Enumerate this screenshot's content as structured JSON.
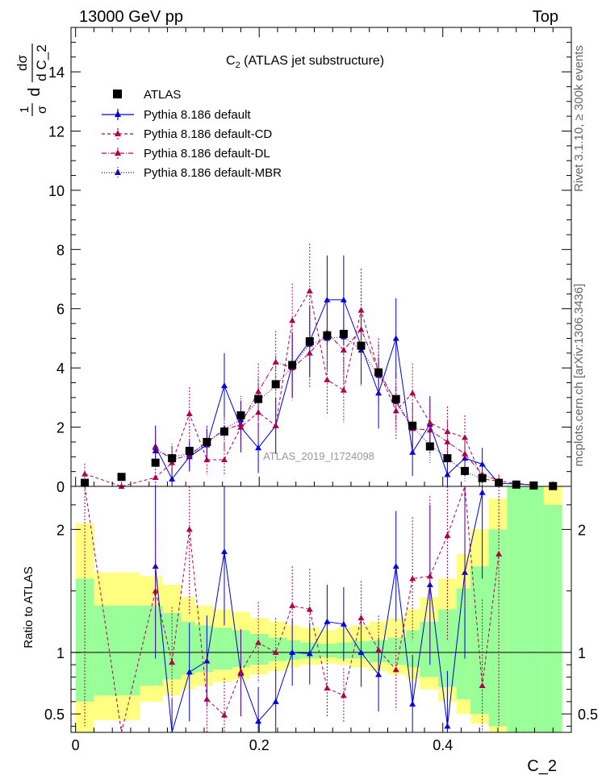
{
  "header": {
    "left": "13000 GeV pp",
    "right": "Top"
  },
  "side_labels": {
    "rivet": "Rivet 3.1.10, ≥ 300k events",
    "mcplots": "mcplots.cern.ch [arXiv:1306.3436]"
  },
  "watermark": "ATLAS_2019_I1724098",
  "colors": {
    "atlas": "#000000",
    "default": "#0000dd",
    "cd": "#b0004a",
    "dl": "#b0004a",
    "mbr": "#2000b0",
    "band_inner": "#99ff99",
    "band_outer": "#ffff80"
  },
  "chart_data": {
    "type": "scatter",
    "title_main": "C",
    "title_sub": "2",
    "title_rest": " (ATLAS jet substructure)",
    "ylabel_top": "1/σ dσ/dC_2",
    "ylabel_parts": {
      "frac1_num": "1",
      "frac1_den": "σ",
      "d": "d",
      "frac2_num": "dσ",
      "frac2_den": "d C_2"
    },
    "ylabel_ratio": "Ratio to ATLAS",
    "xlabel": "C_2",
    "xlim": [
      -0.005,
      0.54
    ],
    "ylim_top": [
      0,
      15.5
    ],
    "ylim_ratio": [
      0.35,
      2.35
    ],
    "x_ticks": [
      "0",
      "0.2",
      "0.4"
    ],
    "y_ticks_top": [
      "0",
      "2",
      "4",
      "6",
      "8",
      "10",
      "12",
      "14"
    ],
    "y_ticks_ratio": [
      "0.5",
      "1",
      "2"
    ],
    "legend": [
      {
        "label": "ATLAS"
      },
      {
        "label": "Pythia 8.186 default"
      },
      {
        "label": "Pythia 8.186 default-CD"
      },
      {
        "label": "Pythia 8.186 default-DL"
      },
      {
        "label": "Pythia 8.186 default-MBR"
      }
    ],
    "series": [
      {
        "name": "ATLAS",
        "x": [
          0.01,
          0.05,
          0.087,
          0.105,
          0.124,
          0.143,
          0.162,
          0.18,
          0.199,
          0.218,
          0.236,
          0.255,
          0.274,
          0.292,
          0.311,
          0.33,
          0.349,
          0.367,
          0.386,
          0.405,
          0.424,
          0.443,
          0.461,
          0.48,
          0.499,
          0.52
        ],
        "y": [
          0.12,
          0.32,
          0.8,
          0.95,
          1.2,
          1.5,
          1.85,
          2.4,
          2.95,
          3.45,
          4.1,
          4.9,
          5.1,
          5.15,
          4.75,
          3.85,
          2.95,
          2.05,
          1.35,
          0.95,
          0.52,
          0.28,
          0.12,
          0.06,
          0.03,
          0.01
        ]
      },
      {
        "name": "Pythia 8.186 default",
        "x": [
          0.087,
          0.105,
          0.124,
          0.143,
          0.162,
          0.18,
          0.199,
          0.218,
          0.236,
          0.255,
          0.274,
          0.292,
          0.311,
          0.33,
          0.349,
          0.367,
          0.386,
          0.405,
          0.424,
          0.443,
          0.461,
          0.48,
          0.499
        ],
        "y": [
          1.35,
          0.25,
          1.0,
          1.4,
          3.4,
          2.0,
          1.3,
          2.05,
          4.1,
          4.9,
          6.3,
          6.3,
          4.75,
          3.15,
          5.0,
          1.15,
          2.1,
          0.4,
          0.95,
          0.75,
          0.1,
          0.08,
          0.05
        ],
        "err": [
          0.7,
          0.35,
          0.5,
          0.55,
          1.1,
          0.85,
          0.85,
          0.95,
          1.1,
          1.2,
          1.5,
          1.5,
          1.3,
          1.2,
          1.35,
          0.8,
          0.9,
          0.45,
          0.6,
          0.55,
          0.1,
          0.08,
          0.05
        ]
      },
      {
        "name": "Pythia 8.186 default-CD",
        "x": [
          0.01,
          0.05,
          0.087,
          0.105,
          0.124,
          0.143,
          0.162,
          0.18,
          0.199,
          0.218,
          0.236,
          0.255,
          0.274,
          0.292,
          0.311,
          0.33,
          0.349,
          0.367,
          0.386,
          0.405,
          0.424,
          0.443,
          0.461,
          0.48,
          0.499
        ],
        "y": [
          0.42,
          0.0,
          0.3,
          0.8,
          2.45,
          0.9,
          0.9,
          2.0,
          2.5,
          2.05,
          5.6,
          6.6,
          3.6,
          3.25,
          5.95,
          3.9,
          2.55,
          3.15,
          2.15,
          1.85,
          1.65,
          0.25,
          0.18,
          0.1,
          0.05
        ],
        "err": [
          0.35,
          0.15,
          0.3,
          0.5,
          0.9,
          0.5,
          0.55,
          0.8,
          0.95,
          0.95,
          1.25,
          1.6,
          1.2,
          1.1,
          1.4,
          1.1,
          0.95,
          1.0,
          0.9,
          0.85,
          0.75,
          0.25,
          0.18,
          0.1,
          0.05
        ]
      },
      {
        "name": "Pythia 8.186 default-DL",
        "x": [
          0.087,
          0.105,
          0.124,
          0.143,
          0.162,
          0.18,
          0.199,
          0.218,
          0.236,
          0.255,
          0.274,
          0.292,
          0.311,
          0.33,
          0.349,
          0.367,
          0.386,
          0.405,
          0.424,
          0.443,
          0.461
        ],
        "y": [
          1.3,
          0.9,
          1.05,
          1.5,
          1.9,
          2.1,
          3.2,
          4.2,
          4.0,
          4.5,
          5.2,
          4.6,
          5.3,
          3.9,
          2.85,
          1.95,
          1.9,
          1.5,
          1.1,
          0.4,
          0.2
        ],
        "err": [
          0.6,
          0.45,
          0.5,
          0.55,
          0.7,
          0.8,
          0.95,
          1.05,
          1.1,
          1.2,
          1.3,
          1.2,
          1.3,
          1.1,
          0.95,
          0.85,
          0.8,
          0.7,
          0.6,
          0.4,
          0.2
        ]
      },
      {
        "name": "Pythia 8.186 default-MBR",
        "x": [
          0.087,
          0.105,
          0.124,
          0.143,
          0.162,
          0.18,
          0.199,
          0.218,
          0.236,
          0.255,
          0.274,
          0.292,
          0.311,
          0.33,
          0.349,
          0.367,
          0.386,
          0.405,
          0.424,
          0.443
        ],
        "y": [
          1.2,
          1.0,
          1.1,
          1.45,
          1.95,
          2.25,
          2.9,
          3.4,
          4.05,
          4.8,
          5.0,
          5.05,
          4.6,
          3.75,
          2.9,
          2.0,
          1.4,
          0.95,
          0.5,
          0.25
        ],
        "err": [
          0.5,
          0.45,
          0.5,
          0.55,
          0.7,
          0.8,
          0.9,
          1.0,
          1.05,
          1.15,
          1.2,
          1.2,
          1.2,
          1.05,
          0.9,
          0.8,
          0.65,
          0.5,
          0.35,
          0.2
        ]
      }
    ],
    "ratio_series": [
      {
        "name": "Pythia 8.186 default",
        "x": [
          0.087,
          0.105,
          0.124,
          0.143,
          0.162,
          0.18,
          0.199,
          0.218,
          0.236,
          0.255,
          0.274,
          0.292,
          0.311,
          0.33,
          0.349,
          0.367,
          0.386,
          0.405,
          0.424,
          0.443
        ],
        "y": [
          1.7,
          0.27,
          0.84,
          0.93,
          1.82,
          0.83,
          0.44,
          0.6,
          1.0,
          0.99,
          1.25,
          1.23,
          1.0,
          0.82,
          1.7,
          0.58,
          1.55,
          0.4,
          1.65,
          2.3
        ],
        "err": [
          0.75,
          0.35,
          0.4,
          0.37,
          0.6,
          0.35,
          0.28,
          0.27,
          0.27,
          0.25,
          0.3,
          0.3,
          0.28,
          0.3,
          0.45,
          0.4,
          0.65,
          0.45,
          0.7,
          0.7
        ]
      },
      {
        "name": "Pythia 8.186 default-CD",
        "x": [
          0.01,
          0.05,
          0.087,
          0.105,
          0.124,
          0.143,
          0.162,
          0.18,
          0.199,
          0.218,
          0.236,
          0.255,
          0.274,
          0.292,
          0.311,
          0.33,
          0.349,
          0.367,
          0.386,
          0.405,
          0.424,
          0.443,
          0.461
        ],
        "y": [
          3.4,
          0.0,
          1.5,
          0.92,
          2.0,
          0.62,
          0.49,
          0.84,
          1.08,
          1.0,
          1.38,
          1.35,
          0.71,
          0.65,
          1.28,
          1.02,
          0.86,
          1.6,
          1.62,
          1.95,
          2.55,
          0.73,
          1.8
        ],
        "err": [
          3.0,
          0.4,
          0.5,
          0.45,
          0.7,
          0.35,
          0.3,
          0.35,
          0.33,
          0.28,
          0.32,
          0.33,
          0.23,
          0.22,
          0.3,
          0.28,
          0.33,
          0.5,
          0.65,
          0.85,
          1.2,
          0.7,
          1.4
        ]
      }
    ],
    "band_x_edges": [
      0.0,
      0.02,
      0.07,
      0.095,
      0.115,
      0.13,
      0.15,
      0.17,
      0.19,
      0.21,
      0.23,
      0.245,
      0.265,
      0.285,
      0.3,
      0.32,
      0.34,
      0.36,
      0.375,
      0.395,
      0.415,
      0.43,
      0.45,
      0.47,
      0.49,
      0.51,
      0.53
    ],
    "band_inner": [
      [
        0.6,
        1.6
      ],
      [
        0.65,
        1.38
      ],
      [
        0.73,
        1.38
      ],
      [
        0.78,
        1.32
      ],
      [
        0.82,
        1.25
      ],
      [
        0.84,
        1.22
      ],
      [
        0.86,
        1.2
      ],
      [
        0.88,
        1.18
      ],
      [
        0.9,
        1.15
      ],
      [
        0.93,
        1.12
      ],
      [
        0.94,
        1.1
      ],
      [
        0.95,
        1.08
      ],
      [
        0.96,
        1.07
      ],
      [
        0.95,
        1.08
      ],
      [
        0.95,
        1.09
      ],
      [
        0.92,
        1.1
      ],
      [
        0.9,
        1.12
      ],
      [
        0.88,
        1.18
      ],
      [
        0.8,
        1.25
      ],
      [
        0.72,
        1.35
      ],
      [
        0.62,
        1.52
      ],
      [
        0.5,
        1.7
      ],
      [
        0.4,
        2.0
      ],
      [
        0.35,
        2.35
      ],
      [
        0.35,
        2.35
      ],
      [
        0.35,
        2.2
      ]
    ],
    "band_outer": [
      [
        0.35,
        2.05
      ],
      [
        0.45,
        1.65
      ],
      [
        0.6,
        1.62
      ],
      [
        0.65,
        1.55
      ],
      [
        0.7,
        1.45
      ],
      [
        0.73,
        1.38
      ],
      [
        0.76,
        1.35
      ],
      [
        0.78,
        1.33
      ],
      [
        0.82,
        1.28
      ],
      [
        0.85,
        1.25
      ],
      [
        0.88,
        1.22
      ],
      [
        0.9,
        1.2
      ],
      [
        0.91,
        1.18
      ],
      [
        0.9,
        1.2
      ],
      [
        0.88,
        1.22
      ],
      [
        0.85,
        1.25
      ],
      [
        0.82,
        1.28
      ],
      [
        0.78,
        1.35
      ],
      [
        0.7,
        1.45
      ],
      [
        0.6,
        1.6
      ],
      [
        0.5,
        1.8
      ],
      [
        0.42,
        2.0
      ],
      [
        0.35,
        2.25
      ],
      [
        0.35,
        2.35
      ],
      [
        0.35,
        2.35
      ],
      [
        0.35,
        2.35
      ]
    ]
  }
}
